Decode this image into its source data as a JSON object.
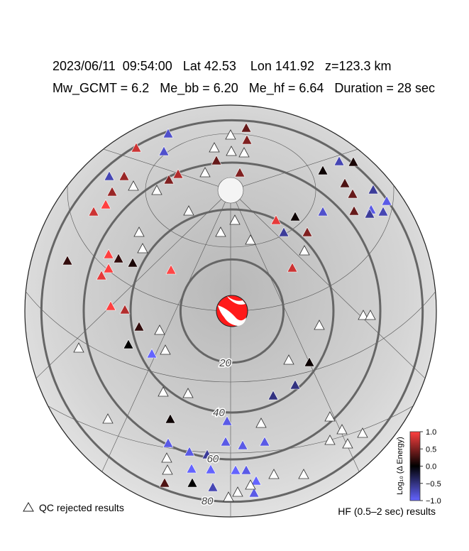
{
  "header": {
    "line1": "2023/06/11  09:54:00   Lat 42.53    Lon 141.92   z=123.3 km",
    "line2": "Mw_GCMT = 6.2   Me_bb = 6.20   Me_hf = 6.64   Duration = 28 sec"
  },
  "rings": [
    20,
    40,
    60,
    80
  ],
  "colorbar": {
    "label": "Log₁₀ (Δ Energy)",
    "lim": [
      -1,
      1
    ],
    "ticks": [
      {
        "value": 1,
        "label": "1.0"
      },
      0.5,
      {
        "value": 0,
        "label": "0.0"
      },
      {
        "value": -0.5,
        "label": "−0.5"
      },
      {
        "value": -1,
        "label": "−1.0"
      }
    ]
  },
  "legend": {
    "rejected": "QC rejected results",
    "hf": "HF (0.5–2 sec) results"
  },
  "stations": {
    "values": [
      -0.8,
      null,
      0.4,
      0.5,
      null,
      null,
      null,
      -0.8,
      0.8,
      0.4,
      0.5,
      null,
      0.7,
      0.5,
      0.6,
      -0.7,
      null,
      0.6,
      1.0,
      0.8,
      null,
      null,
      null,
      null,
      null,
      null,
      0.9,
      0.05,
      -0.6,
      0.5,
      null,
      null,
      0.8,
      0.05,
      -0.7,
      0.1,
      0.3,
      0.4,
      -0.8,
      0.4,
      -0.6,
      -0.9,
      -0.9,
      -0.7,
      -0.6,
      0.2,
      0.2,
      1.0,
      1.0,
      0.9,
      0.1,
      1.1,
      1.0,
      0.7,
      0.2,
      null,
      0.0,
      -1.0,
      null,
      null,
      null,
      null,
      null,
      null,
      0.05,
      -0.5,
      -0.5,
      null,
      null,
      0.05,
      null,
      -0.9,
      null,
      null,
      null,
      null,
      null,
      null,
      -0.9,
      -0.9,
      -0.9,
      -0.9,
      -0.9,
      -0.6,
      null,
      -1.0,
      -1.0,
      -1.0,
      -0.9,
      -1.0,
      null,
      null,
      null,
      0.3,
      0.0,
      -0.7,
      null,
      -0.9,
      null,
      null
    ]
  }
}
